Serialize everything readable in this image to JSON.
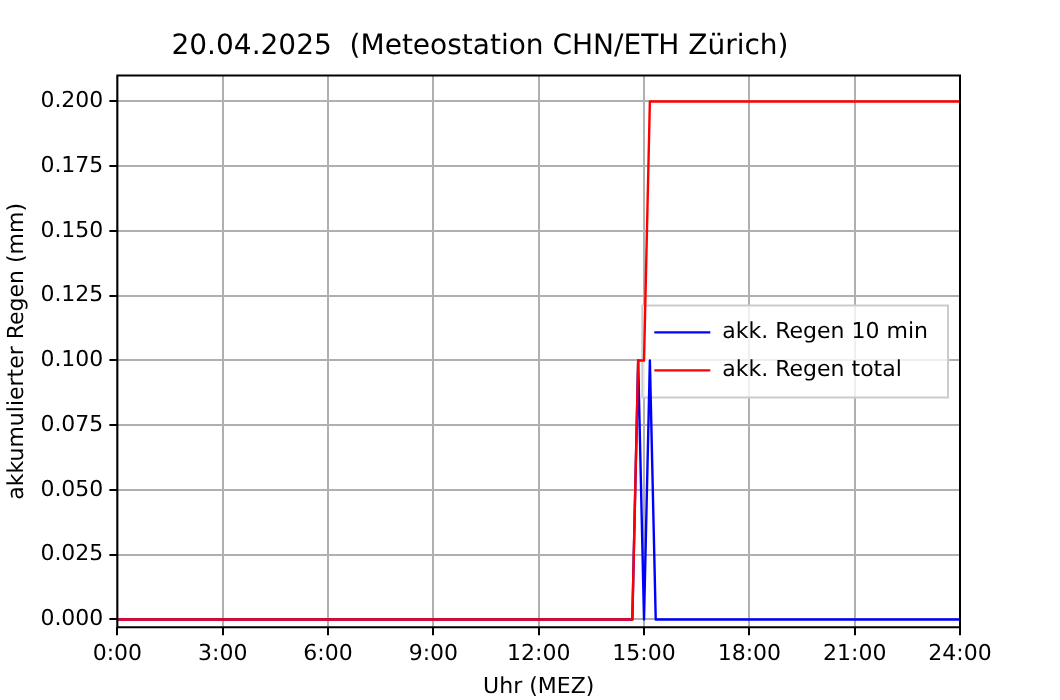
{
  "chart_data": {
    "type": "line",
    "title": "20.04.2025  (Meteostation CHN/ETH Zürich)",
    "xlabel": "Uhr (MEZ)",
    "ylabel": "akkumulierter Regen (mm)",
    "x": [
      0,
      14.6667,
      14.8333,
      15,
      15.1667,
      15.3333,
      24
    ],
    "series": [
      {
        "name": "akk. Regen 10 min",
        "color": "#0000ff",
        "values": [
          0,
          0,
          0.1,
          0,
          0.1,
          0,
          0
        ]
      },
      {
        "name": "akk. Regen total",
        "color": "#ff0000",
        "values": [
          0,
          0,
          0.1,
          0.1,
          0.2,
          0.2,
          0.2
        ]
      }
    ],
    "xlim": [
      0,
      24
    ],
    "xticks": [
      {
        "value": 0,
        "label": "0:00"
      },
      {
        "value": 3,
        "label": "3:00"
      },
      {
        "value": 6,
        "label": "6:00"
      },
      {
        "value": 9,
        "label": "9:00"
      },
      {
        "value": 12,
        "label": "12:00"
      },
      {
        "value": 15,
        "label": "15:00"
      },
      {
        "value": 18,
        "label": "18:00"
      },
      {
        "value": 21,
        "label": "21:00"
      },
      {
        "value": 24,
        "label": "24:00"
      }
    ],
    "ylim": [
      -0.003,
      0.21
    ],
    "yticks": [
      {
        "value": 0,
        "label": "0.000"
      },
      {
        "value": 0.025,
        "label": "0.025"
      },
      {
        "value": 0.05,
        "label": "0.050"
      },
      {
        "value": 0.075,
        "label": "0.075"
      },
      {
        "value": 0.1,
        "label": "0.100"
      },
      {
        "value": 0.125,
        "label": "0.125"
      },
      {
        "value": 0.15,
        "label": "0.150"
      },
      {
        "value": 0.175,
        "label": "0.175"
      },
      {
        "value": 0.2,
        "label": "0.200"
      }
    ],
    "grid": true,
    "legend": "center right",
    "marker": "none",
    "line_style": "solid"
  }
}
